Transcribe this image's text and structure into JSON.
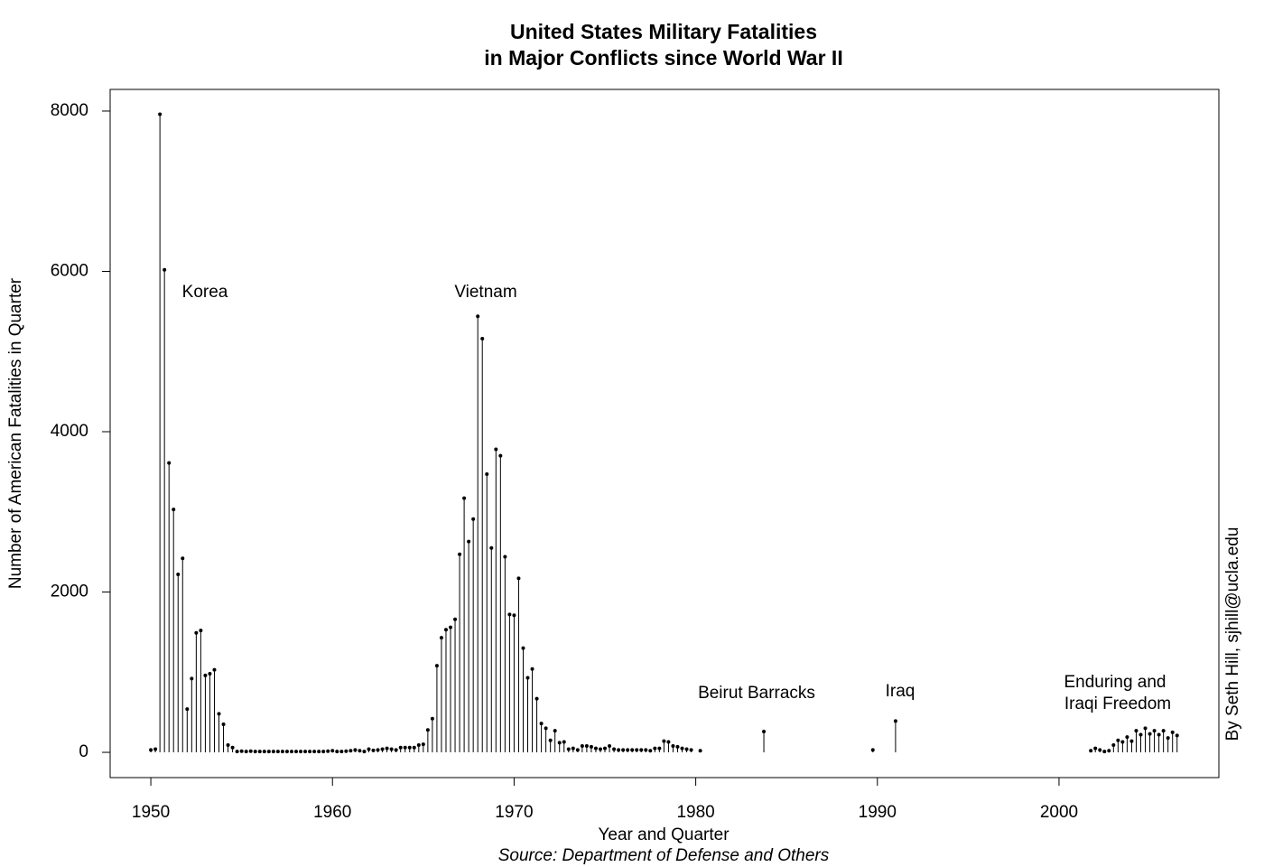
{
  "chart_data": {
    "type": "needle",
    "title": [
      "United States Military Fatalities",
      "in Major Conflicts since World War II"
    ],
    "x_label": "Year and Quarter",
    "source": "Source: Department of Defense and Others",
    "y_label": "Number of American Fatalities in Quarter",
    "credit": "By Seth Hill, sjhill@ucla.edu",
    "annotations": [
      "Korea",
      "Vietnam",
      "Beirut Barracks",
      "Iraq",
      "Enduring and",
      "Iraqi Freedom"
    ],
    "color": "#000000",
    "xlim": [
      1947.76,
      2008.8
    ],
    "ylim": [
      -315,
      8270
    ],
    "xticks": [
      1950,
      1960,
      1970,
      1980,
      1990,
      2000
    ],
    "yticks": [
      0,
      2000,
      4000,
      6000,
      8000
    ],
    "x": [
      1950,
      1950.25,
      1950.5,
      1950.75,
      1951,
      1951.25,
      1951.5,
      1951.75,
      1952,
      1952.25,
      1952.5,
      1952.75,
      1953,
      1953.25,
      1953.5,
      1953.75,
      1954,
      1954.25,
      1954.5,
      1954.75,
      1955,
      1955.25,
      1955.5,
      1955.75,
      1956,
      1956.25,
      1956.5,
      1956.75,
      1957,
      1957.25,
      1957.5,
      1957.75,
      1958,
      1958.25,
      1958.5,
      1958.75,
      1959,
      1959.25,
      1959.5,
      1959.75,
      1960,
      1960.25,
      1960.5,
      1960.75,
      1961,
      1961.25,
      1961.5,
      1961.75,
      1962,
      1962.25,
      1962.5,
      1962.75,
      1963,
      1963.25,
      1963.5,
      1963.75,
      1964,
      1964.25,
      1964.5,
      1964.75,
      1965,
      1965.25,
      1965.5,
      1965.75,
      1966,
      1966.25,
      1966.5,
      1966.75,
      1967,
      1967.25,
      1967.5,
      1967.75,
      1968,
      1968.25,
      1968.5,
      1968.75,
      1969,
      1969.25,
      1969.5,
      1969.75,
      1970,
      1970.25,
      1970.5,
      1970.75,
      1971,
      1971.25,
      1971.5,
      1971.75,
      1972,
      1972.25,
      1972.5,
      1972.75,
      1973,
      1973.25,
      1973.5,
      1973.75,
      1974,
      1974.25,
      1974.5,
      1974.75,
      1975,
      1975.25,
      1975.5,
      1975.75,
      1976,
      1976.25,
      1976.5,
      1976.75,
      1977,
      1977.25,
      1977.5,
      1977.75,
      1978,
      1978.25,
      1978.5,
      1978.75,
      1979,
      1979.25,
      1979.5,
      1979.75,
      1980.25,
      1983.75,
      1989.75,
      1991,
      2001.75,
      2002,
      2002.25,
      2002.5,
      2002.75,
      2003,
      2003.25,
      2003.5,
      2003.75,
      2004,
      2004.25,
      2004.5,
      2004.75,
      2005,
      2005.25,
      2005.5,
      2005.75,
      2006,
      2006.25,
      2006.5
    ],
    "values": [
      30,
      40,
      7960,
      6020,
      3610,
      3030,
      2220,
      2420,
      540,
      920,
      1490,
      1520,
      960,
      980,
      1030,
      480,
      350,
      90,
      60,
      10,
      15,
      10,
      15,
      10,
      10,
      10,
      10,
      10,
      10,
      10,
      10,
      10,
      10,
      10,
      10,
      10,
      10,
      10,
      10,
      15,
      20,
      10,
      10,
      15,
      20,
      30,
      20,
      10,
      40,
      25,
      30,
      40,
      50,
      40,
      30,
      60,
      60,
      60,
      60,
      90,
      100,
      280,
      420,
      1080,
      1430,
      1530,
      1560,
      1660,
      2470,
      3170,
      2630,
      2910,
      5440,
      5160,
      3470,
      2550,
      3780,
      3700,
      2440,
      1720,
      1710,
      2170,
      1300,
      930,
      1040,
      670,
      360,
      300,
      150,
      270,
      120,
      130,
      40,
      50,
      30,
      80,
      80,
      70,
      50,
      40,
      50,
      80,
      40,
      30,
      30,
      30,
      30,
      30,
      30,
      30,
      20,
      50,
      50,
      140,
      130,
      80,
      70,
      50,
      40,
      30,
      20,
      260,
      30,
      390,
      20,
      50,
      30,
      10,
      20,
      90,
      150,
      130,
      190,
      140,
      270,
      220,
      300,
      230,
      270,
      220,
      270,
      180,
      250,
      210
    ]
  }
}
